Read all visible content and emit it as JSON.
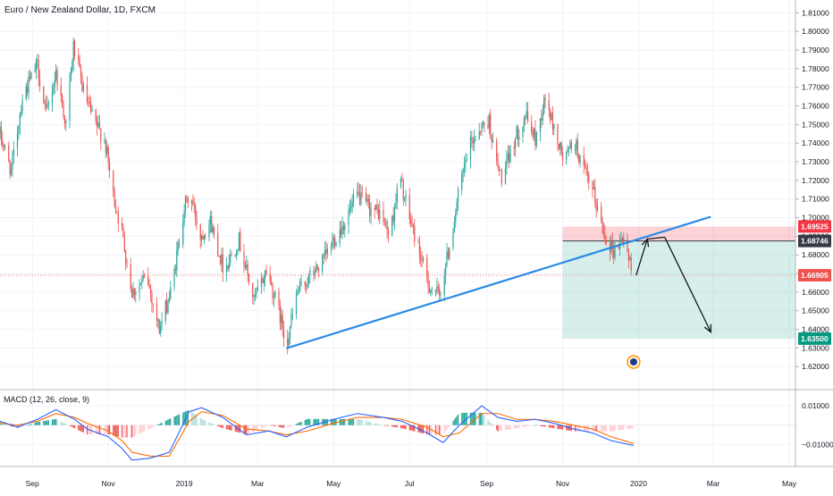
{
  "chart_data": {
    "type": "candlestick",
    "title": "Euro / New Zealand Dollar, 1D, FXCM",
    "ylim": [
      1.61,
      1.815
    ],
    "x_range": [
      "2018-08-06",
      "2020-05-06"
    ],
    "grid": true,
    "yticks": [
      "1.81000",
      "1.80000",
      "1.79000",
      "1.78000",
      "1.77000",
      "1.76000",
      "1.75000",
      "1.74000",
      "1.73000",
      "1.72000",
      "1.71000",
      "1.70000",
      "1.69000",
      "1.68000",
      "1.67000",
      "1.66000",
      "1.65000",
      "1.64000",
      "1.63000",
      "1.62000"
    ],
    "xticks": [
      {
        "label": "Sep",
        "date": "2018-09-01"
      },
      {
        "label": "Nov",
        "date": "2018-11-01"
      },
      {
        "label": "2019",
        "date": "2019-01-01"
      },
      {
        "label": "Mar",
        "date": "2019-03-01"
      },
      {
        "label": "May",
        "date": "2019-05-01"
      },
      {
        "label": "Jul",
        "date": "2019-07-01"
      },
      {
        "label": "Sep",
        "date": "2019-09-01"
      },
      {
        "label": "Nov",
        "date": "2019-11-01"
      },
      {
        "label": "2020",
        "date": "2020-01-01"
      },
      {
        "label": "Mar",
        "date": "2020-03-01"
      },
      {
        "label": "May",
        "date": "2020-05-01"
      }
    ],
    "price_path": [
      [
        "2018-08-06",
        1.745
      ],
      [
        "2018-08-15",
        1.725
      ],
      [
        "2018-08-24",
        1.765
      ],
      [
        "2018-09-05",
        1.782
      ],
      [
        "2018-09-12",
        1.755
      ],
      [
        "2018-09-20",
        1.778
      ],
      [
        "2018-09-28",
        1.75
      ],
      [
        "2018-10-04",
        1.792
      ],
      [
        "2018-10-12",
        1.768
      ],
      [
        "2018-10-20",
        1.752
      ],
      [
        "2018-10-29",
        1.742
      ],
      [
        "2018-11-05",
        1.712
      ],
      [
        "2018-11-12",
        1.692
      ],
      [
        "2018-11-20",
        1.66
      ],
      [
        "2018-12-02",
        1.668
      ],
      [
        "2018-12-12",
        1.64
      ],
      [
        "2018-12-22",
        1.662
      ],
      [
        "2019-01-01",
        1.706
      ],
      [
        "2019-01-06",
        1.712
      ],
      [
        "2019-01-14",
        1.69
      ],
      [
        "2019-01-22",
        1.698
      ],
      [
        "2019-02-02",
        1.672
      ],
      [
        "2019-02-14",
        1.688
      ],
      [
        "2019-02-26",
        1.655
      ],
      [
        "2019-03-08",
        1.672
      ],
      [
        "2019-03-18",
        1.65
      ],
      [
        "2019-03-24",
        1.632
      ],
      [
        "2019-04-02",
        1.66
      ],
      [
        "2019-04-12",
        1.668
      ],
      [
        "2019-04-22",
        1.676
      ],
      [
        "2019-05-01",
        1.688
      ],
      [
        "2019-05-10",
        1.698
      ],
      [
        "2019-05-20",
        1.712
      ],
      [
        "2019-05-30",
        1.705
      ],
      [
        "2019-06-08",
        1.702
      ],
      [
        "2019-06-15",
        1.69
      ],
      [
        "2019-06-23",
        1.722
      ],
      [
        "2019-06-30",
        1.702
      ],
      [
        "2019-07-08",
        1.684
      ],
      [
        "2019-07-16",
        1.664
      ],
      [
        "2019-07-25",
        1.658
      ],
      [
        "2019-08-03",
        1.688
      ],
      [
        "2019-08-10",
        1.715
      ],
      [
        "2019-08-18",
        1.738
      ],
      [
        "2019-08-26",
        1.748
      ],
      [
        "2019-09-03",
        1.752
      ],
      [
        "2019-09-08",
        1.73
      ],
      [
        "2019-09-14",
        1.72
      ],
      [
        "2019-09-22",
        1.74
      ],
      [
        "2019-10-02",
        1.755
      ],
      [
        "2019-10-10",
        1.742
      ],
      [
        "2019-10-18",
        1.764
      ],
      [
        "2019-10-25",
        1.748
      ],
      [
        "2019-11-02",
        1.73
      ],
      [
        "2019-11-10",
        1.742
      ],
      [
        "2019-11-18",
        1.725
      ],
      [
        "2019-11-26",
        1.712
      ],
      [
        "2019-12-04",
        1.692
      ],
      [
        "2019-12-12",
        1.682
      ],
      [
        "2019-12-20",
        1.69
      ],
      [
        "2019-12-26",
        1.672
      ]
    ],
    "trendline": {
      "from": [
        "2019-03-24",
        1.6298
      ],
      "to": [
        "2020-02-28",
        1.7005
      ],
      "color": "#2a8be6"
    },
    "levels": [
      {
        "name": "stop",
        "value": 1.69525,
        "label": "1.69525",
        "color": "#f23645"
      },
      {
        "name": "entry",
        "value": 1.68746,
        "label": "1.68746",
        "color": "#363a45"
      },
      {
        "name": "last",
        "value": 1.66905,
        "label": "1.66905",
        "color": "#ef5350"
      },
      {
        "name": "target",
        "value": 1.635,
        "label": "1.63500",
        "color": "#089981"
      }
    ],
    "position_box": {
      "start": "2019-11-01",
      "end": "2020-05-06"
    },
    "projection_path": [
      [
        "2019-12-30",
        1.669
      ],
      [
        "2020-01-08",
        1.6885
      ],
      [
        "2020-01-22",
        1.6895
      ],
      [
        "2020-02-28",
        1.6385
      ]
    ],
    "macd": {
      "label": "MACD (12, 26, close, 9)",
      "ylim": [
        -0.0195,
        0.0165
      ],
      "yticks": [
        "0.01000",
        "−0.01000"
      ],
      "macd_color": "#2962ff",
      "signal_color": "#ff6d00",
      "up_color": "#26a69a",
      "down_color": "#ef5350",
      "macd_line": [
        [
          "2018-08-06",
          0.002
        ],
        [
          "2018-08-20",
          -0.001
        ],
        [
          "2018-09-05",
          0.003
        ],
        [
          "2018-09-20",
          0.008
        ],
        [
          "2018-10-05",
          0.003
        ],
        [
          "2018-10-15",
          -0.002
        ],
        [
          "2018-11-01",
          -0.006
        ],
        [
          "2018-11-12",
          -0.012
        ],
        [
          "2018-11-20",
          -0.018
        ],
        [
          "2018-12-05",
          -0.017
        ],
        [
          "2018-12-20",
          -0.014
        ],
        [
          "2019-01-05",
          0.007
        ],
        [
          "2019-01-15",
          0.009
        ],
        [
          "2019-02-01",
          0.004
        ],
        [
          "2019-02-20",
          -0.005
        ],
        [
          "2019-03-10",
          -0.003
        ],
        [
          "2019-03-24",
          -0.006
        ],
        [
          "2019-04-10",
          -0.001
        ],
        [
          "2019-05-01",
          0.003
        ],
        [
          "2019-05-20",
          0.006
        ],
        [
          "2019-06-10",
          0.004
        ],
        [
          "2019-06-25",
          0.002
        ],
        [
          "2019-07-15",
          -0.004
        ],
        [
          "2019-07-28",
          -0.009
        ],
        [
          "2019-08-10",
          0.0
        ],
        [
          "2019-08-28",
          0.01
        ],
        [
          "2019-09-10",
          0.004
        ],
        [
          "2019-09-25",
          0.002
        ],
        [
          "2019-10-10",
          0.003
        ],
        [
          "2019-10-25",
          0.001
        ],
        [
          "2019-11-10",
          -0.002
        ],
        [
          "2019-11-25",
          -0.004
        ],
        [
          "2019-12-10",
          -0.008
        ],
        [
          "2019-12-28",
          -0.0105
        ]
      ],
      "signal_line": [
        [
          "2018-08-06",
          0.001
        ],
        [
          "2018-08-20",
          0.0
        ],
        [
          "2018-09-05",
          0.002
        ],
        [
          "2018-09-20",
          0.006
        ],
        [
          "2018-10-05",
          0.004
        ],
        [
          "2018-10-15",
          0.001
        ],
        [
          "2018-11-01",
          -0.003
        ],
        [
          "2018-11-12",
          -0.008
        ],
        [
          "2018-11-20",
          -0.014
        ],
        [
          "2018-12-05",
          -0.016
        ],
        [
          "2018-12-20",
          -0.016
        ],
        [
          "2019-01-05",
          0.002
        ],
        [
          "2019-01-15",
          0.007
        ],
        [
          "2019-02-01",
          0.005
        ],
        [
          "2019-02-20",
          -0.002
        ],
        [
          "2019-03-10",
          -0.003
        ],
        [
          "2019-03-24",
          -0.005
        ],
        [
          "2019-04-10",
          -0.003
        ],
        [
          "2019-05-01",
          0.001
        ],
        [
          "2019-05-20",
          0.004
        ],
        [
          "2019-06-10",
          0.004
        ],
        [
          "2019-06-25",
          0.003
        ],
        [
          "2019-07-15",
          -0.001
        ],
        [
          "2019-07-28",
          -0.006
        ],
        [
          "2019-08-10",
          -0.004
        ],
        [
          "2019-08-28",
          0.006
        ],
        [
          "2019-09-10",
          0.006
        ],
        [
          "2019-09-25",
          0.003
        ],
        [
          "2019-10-10",
          0.003
        ],
        [
          "2019-10-25",
          0.002
        ],
        [
          "2019-11-10",
          0.0
        ],
        [
          "2019-11-25",
          -0.002
        ],
        [
          "2019-12-10",
          -0.006
        ],
        [
          "2019-12-28",
          -0.0095
        ]
      ]
    }
  }
}
